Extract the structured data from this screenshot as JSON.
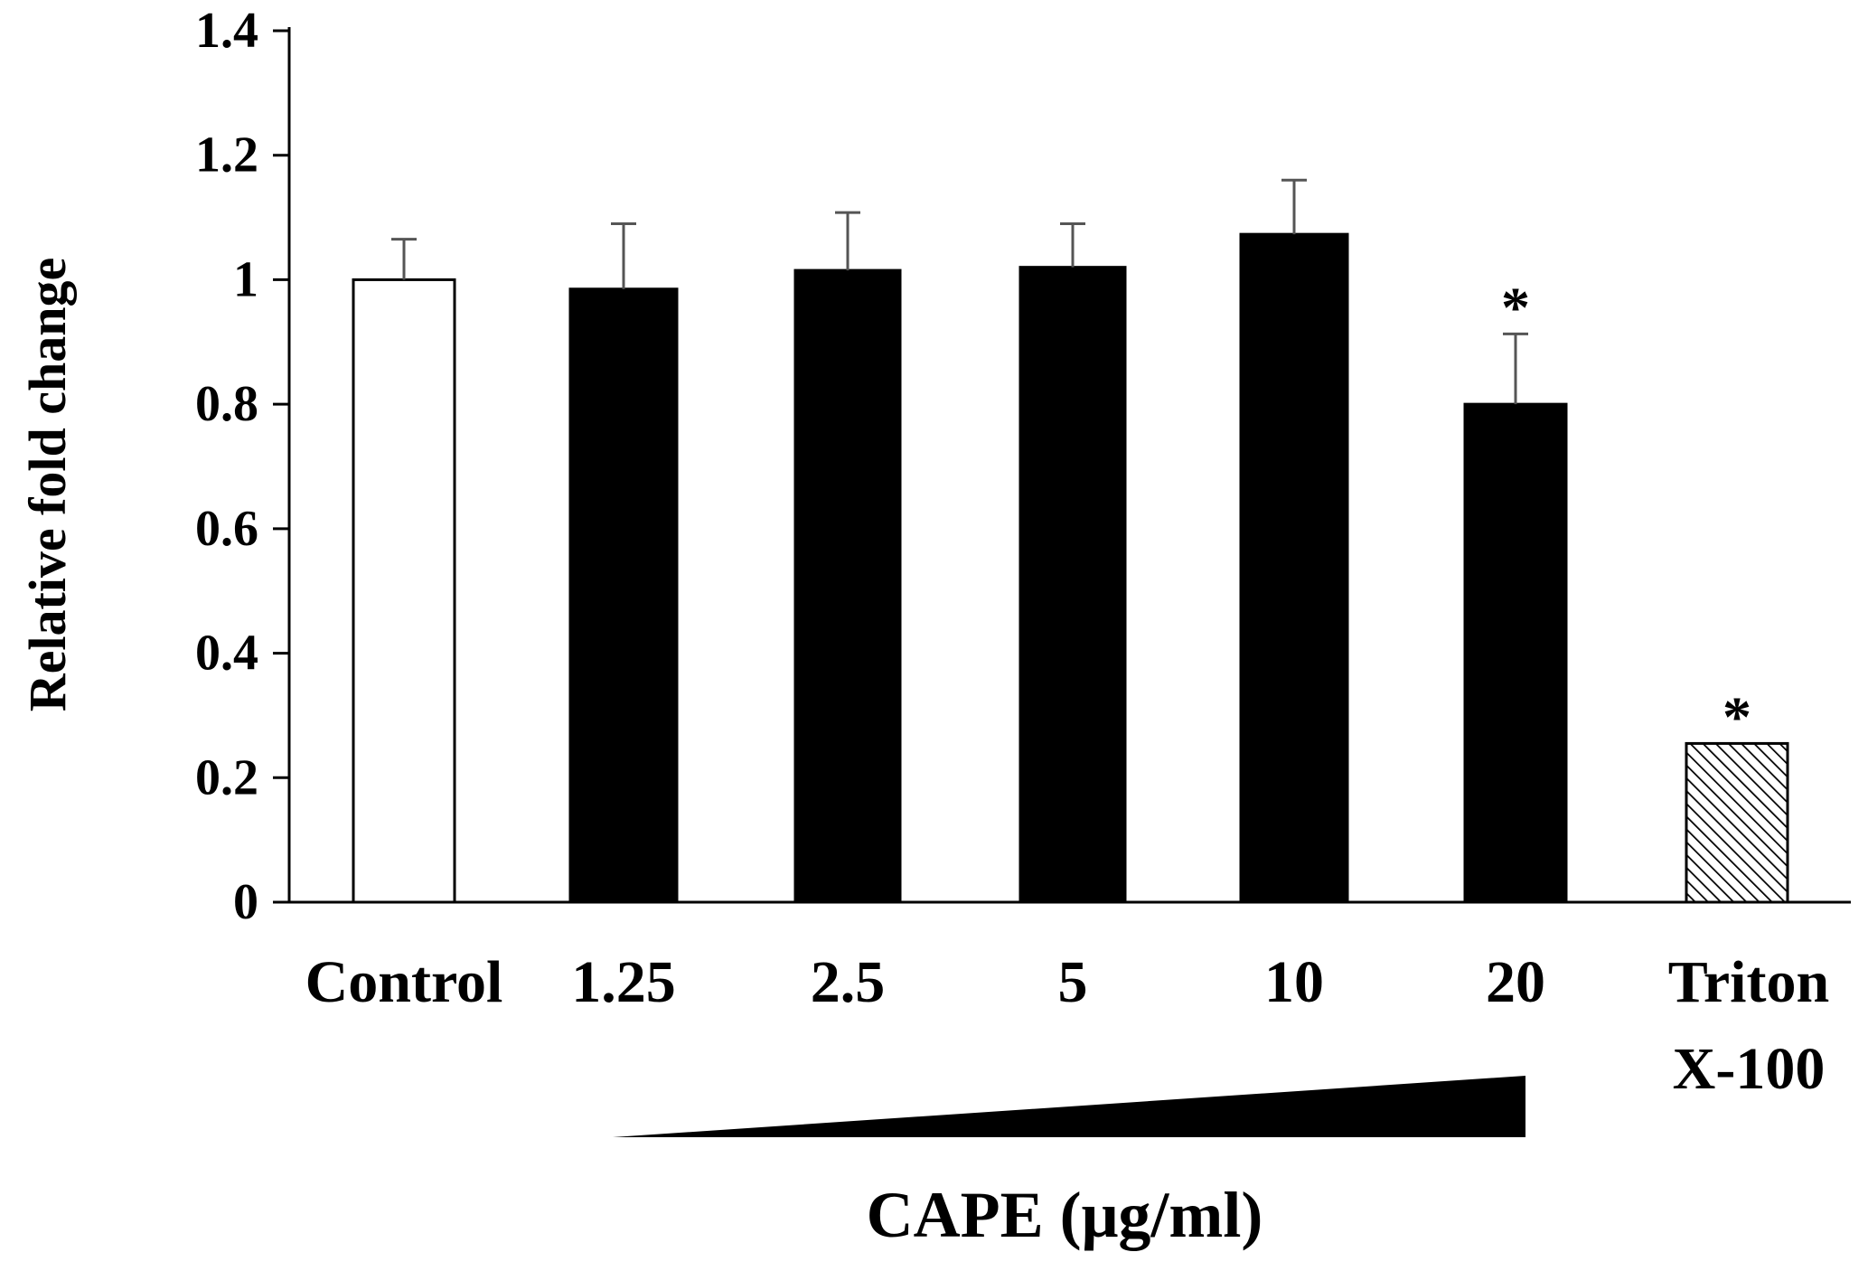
{
  "chart_data": {
    "type": "bar",
    "title": "",
    "xlabel": "",
    "ylabel": "Relative fold change",
    "ylim": [
      0,
      1.4
    ],
    "yticks": [
      0,
      0.2,
      0.4,
      0.6,
      0.8,
      1,
      1.2,
      1.4
    ],
    "ytick_labels": [
      "0",
      "0.2",
      "0.4",
      "0.6",
      "0.8",
      "1",
      "1.2",
      "1.4"
    ],
    "categories": [
      {
        "label": [
          "Control"
        ],
        "value": 1.0,
        "error": 0.065,
        "fill": "white",
        "significant": false
      },
      {
        "label": [
          "1.25"
        ],
        "value": 0.985,
        "error": 0.105,
        "fill": "black",
        "significant": false
      },
      {
        "label": [
          "2.5"
        ],
        "value": 1.015,
        "error": 0.093,
        "fill": "black",
        "significant": false
      },
      {
        "label": [
          "5"
        ],
        "value": 1.02,
        "error": 0.07,
        "fill": "black",
        "significant": false
      },
      {
        "label": [
          "10"
        ],
        "value": 1.073,
        "error": 0.087,
        "fill": "black",
        "significant": false
      },
      {
        "label": [
          "20"
        ],
        "value": 0.8,
        "error": 0.113,
        "fill": "black",
        "significant": true
      },
      {
        "label": [
          "Triton",
          "X-100"
        ],
        "value": 0.255,
        "error": 0,
        "fill": "hatched",
        "significant": true
      }
    ],
    "significance_marker": "*",
    "grid": false,
    "annotations": {
      "gradient_wedge": "increasing CAPE concentration (1.25 → 20)",
      "gradient_label": "CAPE (μg/ml)"
    },
    "colors": {
      "bar_dark": "#000000",
      "bar_light": "#ffffff",
      "axis": "#000000",
      "error_bar": "#555555"
    }
  }
}
